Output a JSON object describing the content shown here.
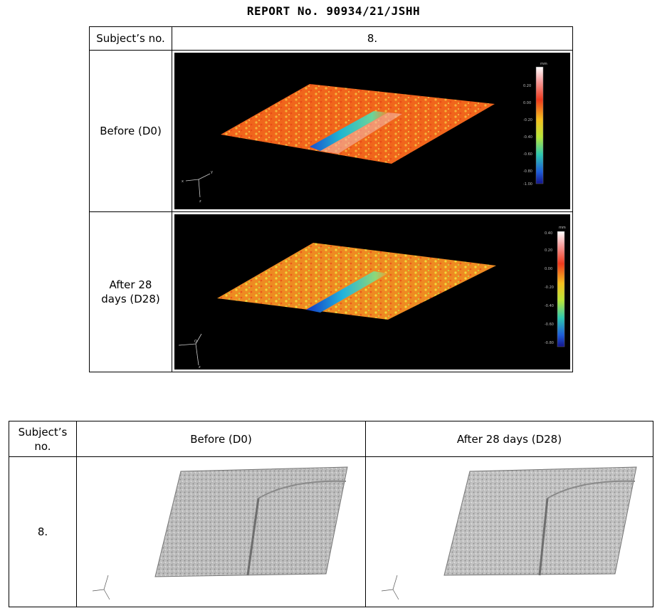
{
  "report_title": "REPORT No. 90934/21/JSHH",
  "top_table": {
    "header_label": "Subject’s no.",
    "header_value": "8.",
    "rows": [
      {
        "label": "Before (D0)",
        "colorbar_unit": "mm",
        "colorbar_ticks": [
          "0.20",
          "0.00",
          "-0.20",
          "-0.40",
          "-0.60",
          "-0.80",
          "-1.00"
        ]
      },
      {
        "label_line1": "After 28",
        "label_line2": "days (D28)",
        "colorbar_unit": "mm",
        "colorbar_ticks": [
          "0.40",
          "0.20",
          "0.00",
          "-0.20",
          "-0.40",
          "-0.60",
          "-0.80"
        ]
      }
    ],
    "axes": {
      "x": "x",
      "y": "y",
      "z": "z",
      "origin": "O"
    }
  },
  "bottom_table": {
    "header_subject_line1": "Subject’s",
    "header_subject_line2": "no.",
    "header_before": "Before (D0)",
    "header_after": "After 28 days (D28)",
    "subject_value": "8."
  },
  "colors": {
    "surface_orange": "#f06a1e",
    "surface_yellow": "#e8c23a",
    "groove_blue": "#1a6fd8",
    "groove_cyan": "#29c7c0",
    "gray_surface": "#b8b8b8"
  }
}
